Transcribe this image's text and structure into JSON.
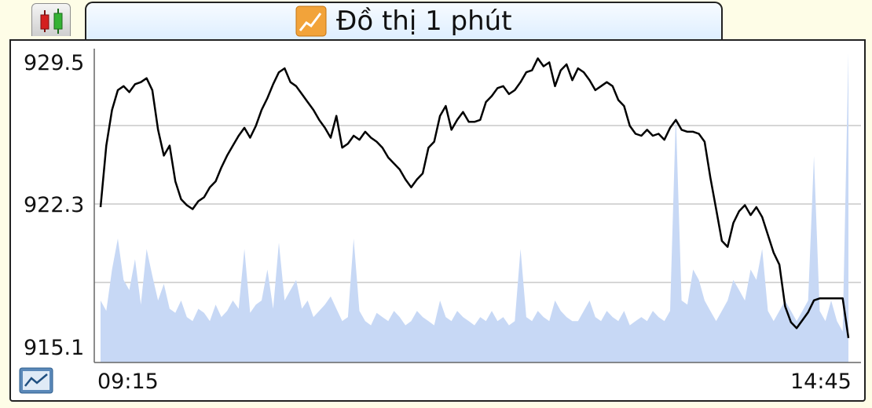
{
  "tab": {
    "title": "Đồ thị 1 phút"
  },
  "colors": {
    "background": "#fefde7",
    "line": "#000000",
    "volume": "#c7d8f5",
    "grid": "#c8c8c8"
  },
  "chart_data": {
    "type": "line",
    "title": "",
    "xlabel": "",
    "ylabel": "",
    "x_tick_labels": [
      "09:15",
      "14:45"
    ],
    "y_tick_labels": [
      "929.5",
      "922.3",
      "915.1"
    ],
    "ylim": [
      915.1,
      929.5
    ],
    "grid": true,
    "series": [
      {
        "values": [
          922.3,
          925.4,
          927.2,
          928.2,
          928.4,
          928.1,
          928.5,
          928.6,
          928.8,
          928.2,
          926.2,
          924.9,
          925.4,
          923.6,
          922.7,
          922.4,
          922.2,
          922.6,
          922.8,
          923.3,
          923.6,
          924.3,
          924.9,
          925.4,
          925.9,
          926.3,
          925.8,
          926.4,
          927.2,
          927.8,
          928.5,
          929.1,
          929.3,
          928.6,
          928.4,
          928.0,
          927.6,
          927.2,
          926.7,
          926.3,
          925.8,
          926.9,
          925.3,
          925.5,
          925.9,
          925.7,
          926.1,
          925.8,
          925.6,
          925.3,
          924.8,
          924.5,
          924.2,
          923.7,
          923.3,
          923.7,
          924.0,
          925.3,
          925.6,
          926.9,
          927.4,
          926.2,
          926.7,
          927.1,
          926.6,
          926.6,
          926.7,
          927.6,
          927.9,
          928.3,
          928.4,
          928.0,
          928.2,
          928.6,
          929.1,
          929.2,
          929.8,
          929.4,
          929.6,
          928.4,
          929.2,
          929.5,
          928.7,
          929.3,
          929.1,
          928.7,
          928.2,
          928.4,
          928.6,
          928.4,
          927.7,
          927.4,
          926.4,
          926.0,
          925.9,
          926.2,
          925.9,
          926.0,
          925.7,
          926.3,
          926.7,
          926.2,
          926.1,
          926.1,
          926.0,
          925.6,
          923.8,
          922.2,
          920.6,
          920.3,
          921.5,
          922.1,
          922.4,
          921.9,
          922.3,
          921.8,
          920.9,
          920.0,
          919.4,
          917.3,
          916.5,
          916.2,
          916.6,
          917.0,
          917.6,
          917.7,
          917.7,
          917.7,
          917.7,
          917.7,
          915.7
        ]
      }
    ],
    "volume": [
      30,
      25,
      45,
      60,
      40,
      35,
      50,
      28,
      55,
      42,
      30,
      38,
      26,
      24,
      30,
      22,
      20,
      26,
      24,
      20,
      28,
      22,
      25,
      30,
      26,
      55,
      24,
      28,
      30,
      45,
      26,
      58,
      30,
      35,
      40,
      26,
      30,
      22,
      25,
      28,
      32,
      26,
      20,
      22,
      60,
      25,
      20,
      18,
      24,
      22,
      20,
      25,
      22,
      18,
      20,
      25,
      22,
      20,
      18,
      30,
      22,
      20,
      25,
      22,
      20,
      18,
      22,
      20,
      25,
      20,
      22,
      18,
      20,
      55,
      22,
      20,
      25,
      22,
      20,
      30,
      25,
      22,
      20,
      20,
      25,
      30,
      22,
      20,
      25,
      22,
      20,
      25,
      18,
      20,
      22,
      20,
      25,
      22,
      20,
      25,
      120,
      30,
      28,
      45,
      40,
      30,
      25,
      20,
      25,
      30,
      40,
      35,
      30,
      45,
      40,
      55,
      25,
      20,
      25,
      30,
      25,
      20,
      25,
      30,
      100,
      25,
      20,
      30,
      20,
      15,
      150
    ]
  }
}
